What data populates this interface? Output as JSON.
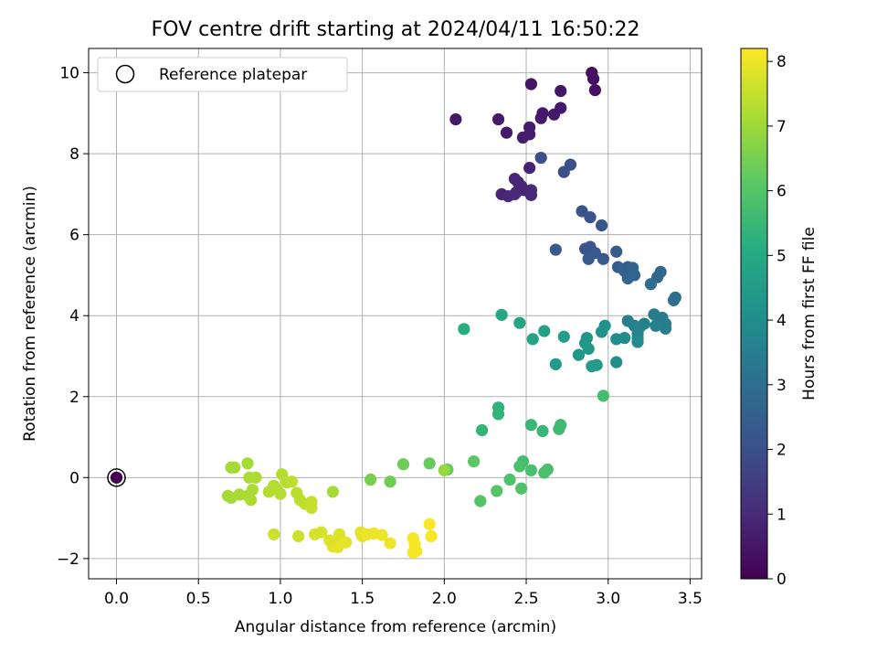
{
  "chart_data": {
    "type": "scatter",
    "title": "FOV centre drift starting at 2024/04/11 16:50:22",
    "xlabel": "Angular distance from reference (arcmin)",
    "ylabel": "Rotation from reference (arcmin)",
    "xlim": [
      -0.17,
      3.57
    ],
    "ylim": [
      -2.5,
      10.6
    ],
    "xticks": [
      0.0,
      0.5,
      1.0,
      1.5,
      2.0,
      2.5,
      3.0,
      3.5
    ],
    "xtick_labels": [
      "0.0",
      "0.5",
      "1.0",
      "1.5",
      "2.0",
      "2.5",
      "3.0",
      "3.5"
    ],
    "yticks": [
      -2,
      0,
      2,
      4,
      6,
      8,
      10
    ],
    "ytick_labels": [
      "−2",
      "0",
      "2",
      "4",
      "6",
      "8",
      "10"
    ],
    "grid": true,
    "legend": {
      "placement": "upper left",
      "entries": [
        "Reference platepar"
      ]
    },
    "colorbar": {
      "label": "Hours from first FF file",
      "colormap": "viridis",
      "range": [
        0,
        8.2
      ],
      "ticks": [
        0,
        1,
        2,
        3,
        4,
        5,
        6,
        7,
        8
      ],
      "tick_labels": [
        "0",
        "1",
        "2",
        "3",
        "4",
        "5",
        "6",
        "7",
        "8"
      ]
    },
    "reference_point": {
      "x": 0.0,
      "y": 0.0,
      "hours": 0.0
    },
    "points": [
      {
        "x": 2.9,
        "y": 10.0,
        "h": 0.35
      },
      {
        "x": 2.91,
        "y": 9.85,
        "h": 0.35
      },
      {
        "x": 2.92,
        "y": 9.57,
        "h": 0.4
      },
      {
        "x": 2.53,
        "y": 9.72,
        "h": 0.45
      },
      {
        "x": 2.71,
        "y": 9.55,
        "h": 0.5
      },
      {
        "x": 2.6,
        "y": 9.0,
        "h": 0.55
      },
      {
        "x": 2.59,
        "y": 8.88,
        "h": 0.55
      },
      {
        "x": 2.67,
        "y": 8.97,
        "h": 0.6
      },
      {
        "x": 2.71,
        "y": 9.13,
        "h": 0.6
      },
      {
        "x": 2.07,
        "y": 8.85,
        "h": 0.55
      },
      {
        "x": 2.33,
        "y": 8.85,
        "h": 0.6
      },
      {
        "x": 2.38,
        "y": 8.52,
        "h": 0.6
      },
      {
        "x": 2.52,
        "y": 8.65,
        "h": 0.65
      },
      {
        "x": 2.52,
        "y": 8.48,
        "h": 0.65
      },
      {
        "x": 2.48,
        "y": 8.4,
        "h": 0.65
      },
      {
        "x": 2.52,
        "y": 7.65,
        "h": 0.8
      },
      {
        "x": 2.43,
        "y": 7.38,
        "h": 0.85
      },
      {
        "x": 2.45,
        "y": 7.3,
        "h": 0.85
      },
      {
        "x": 2.47,
        "y": 7.2,
        "h": 0.9
      },
      {
        "x": 2.44,
        "y": 7.05,
        "h": 0.9
      },
      {
        "x": 2.49,
        "y": 7.1,
        "h": 0.9
      },
      {
        "x": 2.53,
        "y": 7.1,
        "h": 0.95
      },
      {
        "x": 2.53,
        "y": 6.98,
        "h": 0.95
      },
      {
        "x": 2.35,
        "y": 7.0,
        "h": 0.9
      },
      {
        "x": 2.39,
        "y": 6.95,
        "h": 0.95
      },
      {
        "x": 2.43,
        "y": 7.0,
        "h": 1.0
      },
      {
        "x": 2.59,
        "y": 7.9,
        "h": 2.0
      },
      {
        "x": 2.77,
        "y": 7.73,
        "h": 2.0
      },
      {
        "x": 2.73,
        "y": 7.55,
        "h": 2.0
      },
      {
        "x": 2.84,
        "y": 6.58,
        "h": 2.1
      },
      {
        "x": 2.89,
        "y": 6.43,
        "h": 2.1
      },
      {
        "x": 2.96,
        "y": 6.23,
        "h": 2.2
      },
      {
        "x": 2.68,
        "y": 5.63,
        "h": 2.3
      },
      {
        "x": 2.86,
        "y": 5.65,
        "h": 2.2
      },
      {
        "x": 2.89,
        "y": 5.7,
        "h": 2.2
      },
      {
        "x": 2.92,
        "y": 5.55,
        "h": 2.3
      },
      {
        "x": 2.88,
        "y": 5.4,
        "h": 2.3
      },
      {
        "x": 2.97,
        "y": 5.4,
        "h": 2.3
      },
      {
        "x": 3.05,
        "y": 5.58,
        "h": 2.4
      },
      {
        "x": 3.06,
        "y": 5.2,
        "h": 2.5
      },
      {
        "x": 3.1,
        "y": 5.1,
        "h": 2.6
      },
      {
        "x": 3.12,
        "y": 5.2,
        "h": 2.5
      },
      {
        "x": 3.15,
        "y": 5.18,
        "h": 2.6
      },
      {
        "x": 3.13,
        "y": 5.05,
        "h": 2.6
      },
      {
        "x": 3.12,
        "y": 4.92,
        "h": 2.7
      },
      {
        "x": 3.16,
        "y": 5.0,
        "h": 2.7
      },
      {
        "x": 3.3,
        "y": 4.95,
        "h": 2.8
      },
      {
        "x": 3.32,
        "y": 5.08,
        "h": 2.8
      },
      {
        "x": 3.26,
        "y": 4.78,
        "h": 2.9
      },
      {
        "x": 3.41,
        "y": 4.45,
        "h": 3.0
      },
      {
        "x": 3.4,
        "y": 4.38,
        "h": 3.0
      },
      {
        "x": 3.12,
        "y": 3.87,
        "h": 3.5
      },
      {
        "x": 3.16,
        "y": 3.75,
        "h": 3.6
      },
      {
        "x": 3.19,
        "y": 3.7,
        "h": 3.7
      },
      {
        "x": 3.22,
        "y": 3.8,
        "h": 3.6
      },
      {
        "x": 3.28,
        "y": 4.03,
        "h": 3.4
      },
      {
        "x": 3.33,
        "y": 3.95,
        "h": 3.4
      },
      {
        "x": 3.35,
        "y": 3.8,
        "h": 3.5
      },
      {
        "x": 3.35,
        "y": 3.68,
        "h": 3.5
      },
      {
        "x": 3.29,
        "y": 3.75,
        "h": 3.6
      },
      {
        "x": 3.18,
        "y": 3.55,
        "h": 3.8
      },
      {
        "x": 3.18,
        "y": 3.45,
        "h": 3.8
      },
      {
        "x": 3.18,
        "y": 3.35,
        "h": 3.9
      },
      {
        "x": 3.05,
        "y": 3.42,
        "h": 4.0
      },
      {
        "x": 3.1,
        "y": 3.45,
        "h": 4.0
      },
      {
        "x": 3.05,
        "y": 2.85,
        "h": 4.1
      },
      {
        "x": 2.96,
        "y": 3.6,
        "h": 4.2
      },
      {
        "x": 2.98,
        "y": 3.75,
        "h": 4.2
      },
      {
        "x": 2.87,
        "y": 3.45,
        "h": 4.3
      },
      {
        "x": 2.86,
        "y": 3.32,
        "h": 4.3
      },
      {
        "x": 2.88,
        "y": 3.18,
        "h": 4.4
      },
      {
        "x": 2.82,
        "y": 3.03,
        "h": 4.4
      },
      {
        "x": 2.9,
        "y": 2.75,
        "h": 4.5
      },
      {
        "x": 2.93,
        "y": 2.78,
        "h": 4.5
      },
      {
        "x": 2.68,
        "y": 2.8,
        "h": 4.5
      },
      {
        "x": 2.73,
        "y": 3.48,
        "h": 4.6
      },
      {
        "x": 2.61,
        "y": 3.62,
        "h": 4.7
      },
      {
        "x": 2.54,
        "y": 3.42,
        "h": 4.7
      },
      {
        "x": 2.46,
        "y": 3.82,
        "h": 4.8
      },
      {
        "x": 2.35,
        "y": 4.02,
        "h": 4.9
      },
      {
        "x": 2.12,
        "y": 3.67,
        "h": 5.1
      },
      {
        "x": 2.97,
        "y": 2.02,
        "h": 5.7
      },
      {
        "x": 2.33,
        "y": 1.73,
        "h": 5.3
      },
      {
        "x": 2.33,
        "y": 1.57,
        "h": 5.4
      },
      {
        "x": 2.23,
        "y": 1.17,
        "h": 5.4
      },
      {
        "x": 2.53,
        "y": 1.3,
        "h": 5.5
      },
      {
        "x": 2.6,
        "y": 1.15,
        "h": 5.5
      },
      {
        "x": 2.71,
        "y": 1.3,
        "h": 5.6
      },
      {
        "x": 2.7,
        "y": 1.2,
        "h": 5.6
      },
      {
        "x": 2.48,
        "y": 0.4,
        "h": 5.7
      },
      {
        "x": 2.46,
        "y": 0.28,
        "h": 5.8
      },
      {
        "x": 2.53,
        "y": 0.18,
        "h": 5.8
      },
      {
        "x": 2.61,
        "y": 0.12,
        "h": 5.8
      },
      {
        "x": 2.63,
        "y": 0.2,
        "h": 5.8
      },
      {
        "x": 2.4,
        "y": -0.05,
        "h": 5.9
      },
      {
        "x": 2.47,
        "y": -0.27,
        "h": 5.9
      },
      {
        "x": 2.32,
        "y": -0.33,
        "h": 6.0
      },
      {
        "x": 2.22,
        "y": -0.58,
        "h": 6.0
      },
      {
        "x": 2.18,
        "y": 0.4,
        "h": 6.1
      },
      {
        "x": 1.91,
        "y": 0.35,
        "h": 6.3
      },
      {
        "x": 1.75,
        "y": 0.33,
        "h": 6.4
      },
      {
        "x": 1.67,
        "y": -0.1,
        "h": 6.4
      },
      {
        "x": 1.55,
        "y": -0.05,
        "h": 6.5
      },
      {
        "x": 2.02,
        "y": 0.2,
        "h": 6.3
      },
      {
        "x": 2.0,
        "y": 0.18,
        "h": 6.9
      },
      {
        "x": 1.32,
        "y": -0.35,
        "h": 7.1
      },
      {
        "x": 0.7,
        "y": 0.25,
        "h": 7.1
      },
      {
        "x": 0.72,
        "y": 0.25,
        "h": 7.1
      },
      {
        "x": 0.8,
        "y": 0.35,
        "h": 7.1
      },
      {
        "x": 0.81,
        "y": 0.0,
        "h": 7.2
      },
      {
        "x": 0.85,
        "y": 0.0,
        "h": 7.2
      },
      {
        "x": 0.68,
        "y": -0.45,
        "h": 7.1
      },
      {
        "x": 0.7,
        "y": -0.5,
        "h": 7.1
      },
      {
        "x": 0.75,
        "y": -0.42,
        "h": 7.1
      },
      {
        "x": 0.8,
        "y": -0.45,
        "h": 7.2
      },
      {
        "x": 0.82,
        "y": -0.55,
        "h": 7.2
      },
      {
        "x": 0.83,
        "y": -0.3,
        "h": 7.2
      },
      {
        "x": 0.93,
        "y": -0.35,
        "h": 7.3
      },
      {
        "x": 0.96,
        "y": -0.2,
        "h": 7.3
      },
      {
        "x": 0.98,
        "y": -0.3,
        "h": 7.3
      },
      {
        "x": 1.0,
        "y": -0.4,
        "h": 7.3
      },
      {
        "x": 1.01,
        "y": 0.08,
        "h": 7.3
      },
      {
        "x": 1.04,
        "y": -0.12,
        "h": 7.3
      },
      {
        "x": 1.07,
        "y": -0.1,
        "h": 7.4
      },
      {
        "x": 1.1,
        "y": -0.38,
        "h": 7.4
      },
      {
        "x": 1.12,
        "y": -0.55,
        "h": 7.4
      },
      {
        "x": 1.15,
        "y": -0.65,
        "h": 7.4
      },
      {
        "x": 1.19,
        "y": -0.6,
        "h": 7.5
      },
      {
        "x": 1.19,
        "y": -0.75,
        "h": 7.5
      },
      {
        "x": 0.96,
        "y": -1.4,
        "h": 7.6
      },
      {
        "x": 1.11,
        "y": -1.45,
        "h": 7.6
      },
      {
        "x": 1.21,
        "y": -1.4,
        "h": 7.7
      },
      {
        "x": 1.25,
        "y": -1.35,
        "h": 7.7
      },
      {
        "x": 1.3,
        "y": -1.55,
        "h": 7.8
      },
      {
        "x": 1.32,
        "y": -1.7,
        "h": 7.8
      },
      {
        "x": 1.34,
        "y": -1.6,
        "h": 7.8
      },
      {
        "x": 1.36,
        "y": -1.4,
        "h": 7.8
      },
      {
        "x": 1.35,
        "y": -1.72,
        "h": 7.9
      },
      {
        "x": 1.4,
        "y": -1.6,
        "h": 7.9
      },
      {
        "x": 1.49,
        "y": -1.35,
        "h": 7.9
      },
      {
        "x": 1.5,
        "y": -1.45,
        "h": 7.9
      },
      {
        "x": 1.53,
        "y": -1.4,
        "h": 8.0
      },
      {
        "x": 1.57,
        "y": -1.38,
        "h": 8.0
      },
      {
        "x": 1.62,
        "y": -1.42,
        "h": 8.0
      },
      {
        "x": 1.67,
        "y": -1.62,
        "h": 8.0
      },
      {
        "x": 1.81,
        "y": -1.5,
        "h": 8.1
      },
      {
        "x": 1.82,
        "y": -1.65,
        "h": 8.1
      },
      {
        "x": 1.83,
        "y": -1.82,
        "h": 8.1
      },
      {
        "x": 1.81,
        "y": -1.85,
        "h": 8.1
      },
      {
        "x": 1.91,
        "y": -1.15,
        "h": 8.15
      },
      {
        "x": 1.92,
        "y": -1.45,
        "h": 8.15
      }
    ]
  }
}
